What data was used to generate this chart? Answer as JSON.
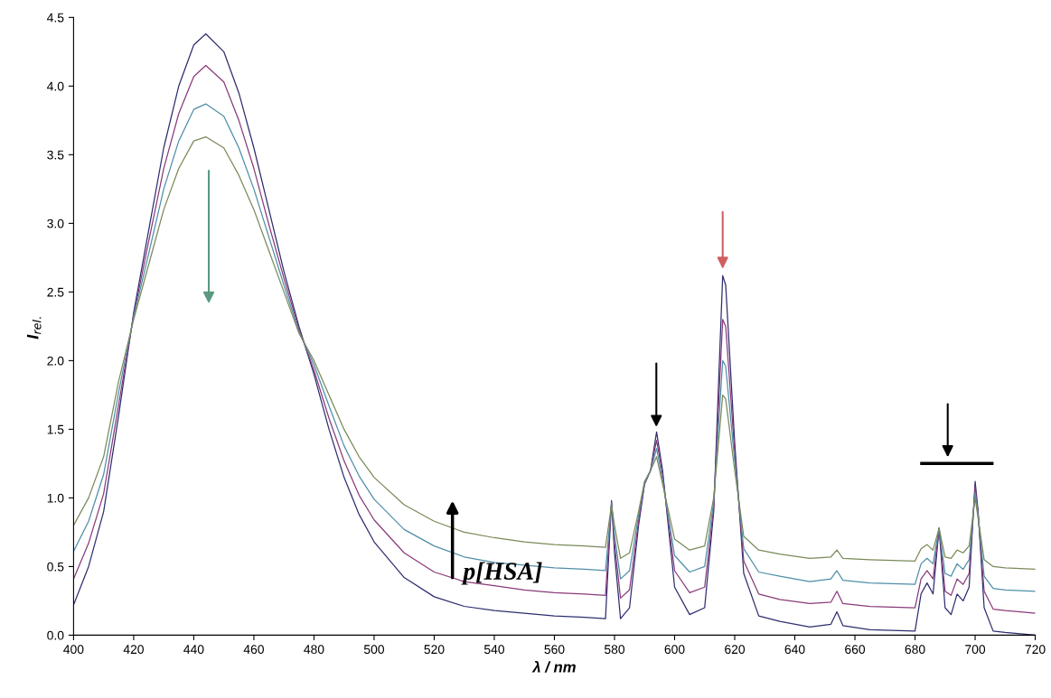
{
  "chart_data": {
    "type": "line",
    "xlabel": "λ / nm",
    "ylabel": "I$_{rel.}$",
    "annotations": [
      "p[HSA]"
    ],
    "x": [
      400,
      405,
      410,
      415,
      420,
      425,
      430,
      435,
      440,
      444,
      450,
      455,
      460,
      465,
      470,
      475,
      480,
      485,
      490,
      495,
      500,
      510,
      520,
      530,
      540,
      550,
      560,
      570,
      577,
      579,
      580,
      582,
      585,
      588,
      590,
      592,
      594,
      596,
      600,
      605,
      610,
      613,
      616,
      617,
      620,
      623,
      628,
      635,
      645,
      652,
      654,
      656,
      665,
      680,
      682,
      684,
      686,
      688,
      690,
      692,
      694,
      696,
      698,
      700,
      701,
      703,
      706,
      710,
      720
    ],
    "series": [
      {
        "color": "#2e2e70",
        "values": [
          0.22,
          0.5,
          0.9,
          1.6,
          2.35,
          2.95,
          3.55,
          4.0,
          4.3,
          4.38,
          4.25,
          3.95,
          3.55,
          3.1,
          2.65,
          2.25,
          1.9,
          1.5,
          1.15,
          0.88,
          0.68,
          0.42,
          0.28,
          0.21,
          0.18,
          0.16,
          0.14,
          0.13,
          0.12,
          0.98,
          0.6,
          0.12,
          0.2,
          0.8,
          1.1,
          1.2,
          1.48,
          1.2,
          0.35,
          0.15,
          0.2,
          0.9,
          2.62,
          2.55,
          1.4,
          0.45,
          0.14,
          0.1,
          0.06,
          0.08,
          0.17,
          0.07,
          0.04,
          0.03,
          0.3,
          0.38,
          0.3,
          0.78,
          0.2,
          0.15,
          0.3,
          0.25,
          0.35,
          1.12,
          0.9,
          0.2,
          0.03,
          0.02,
          0.0
        ]
      },
      {
        "color": "#8a3a7a",
        "values": [
          0.41,
          0.67,
          1.03,
          1.68,
          2.33,
          2.87,
          3.4,
          3.8,
          4.07,
          4.15,
          4.03,
          3.75,
          3.4,
          2.99,
          2.6,
          2.23,
          1.93,
          1.58,
          1.27,
          1.02,
          0.84,
          0.6,
          0.46,
          0.39,
          0.36,
          0.33,
          0.31,
          0.3,
          0.29,
          0.97,
          0.67,
          0.27,
          0.33,
          0.83,
          1.11,
          1.2,
          1.42,
          1.17,
          0.47,
          0.31,
          0.35,
          0.93,
          2.3,
          2.25,
          1.33,
          0.54,
          0.3,
          0.26,
          0.23,
          0.24,
          0.32,
          0.23,
          0.21,
          0.2,
          0.41,
          0.47,
          0.41,
          0.78,
          0.32,
          0.29,
          0.41,
          0.37,
          0.45,
          1.08,
          0.88,
          0.32,
          0.19,
          0.18,
          0.16
        ]
      },
      {
        "color": "#4f8fa8",
        "values": [
          0.61,
          0.83,
          1.17,
          1.77,
          2.32,
          2.78,
          3.25,
          3.6,
          3.83,
          3.87,
          3.78,
          3.55,
          3.25,
          2.9,
          2.55,
          2.21,
          1.97,
          1.67,
          1.38,
          1.16,
          0.99,
          0.77,
          0.65,
          0.57,
          0.53,
          0.51,
          0.49,
          0.48,
          0.47,
          0.96,
          0.73,
          0.41,
          0.47,
          0.87,
          1.11,
          1.2,
          1.36,
          1.13,
          0.58,
          0.46,
          0.5,
          0.97,
          2.0,
          1.96,
          1.27,
          0.63,
          0.46,
          0.43,
          0.39,
          0.41,
          0.47,
          0.4,
          0.38,
          0.37,
          0.52,
          0.56,
          0.52,
          0.78,
          0.45,
          0.43,
          0.52,
          0.48,
          0.55,
          1.04,
          0.87,
          0.43,
          0.34,
          0.33,
          0.32
        ]
      },
      {
        "color": "#7a8a5a",
        "values": [
          0.8,
          1.0,
          1.3,
          1.85,
          2.3,
          2.7,
          3.1,
          3.4,
          3.6,
          3.63,
          3.55,
          3.35,
          3.1,
          2.8,
          2.5,
          2.2,
          2.0,
          1.75,
          1.5,
          1.3,
          1.15,
          0.95,
          0.83,
          0.75,
          0.71,
          0.68,
          0.66,
          0.65,
          0.64,
          0.95,
          0.8,
          0.56,
          0.6,
          0.9,
          1.12,
          1.2,
          1.3,
          1.1,
          0.7,
          0.62,
          0.65,
          1.0,
          1.75,
          1.72,
          1.2,
          0.72,
          0.62,
          0.59,
          0.56,
          0.57,
          0.62,
          0.56,
          0.55,
          0.54,
          0.63,
          0.66,
          0.62,
          0.78,
          0.57,
          0.56,
          0.62,
          0.6,
          0.65,
          1.0,
          0.85,
          0.55,
          0.5,
          0.49,
          0.48
        ]
      }
    ],
    "xlim": [
      400,
      720
    ],
    "xticks": [
      400,
      420,
      440,
      460,
      480,
      500,
      520,
      540,
      560,
      580,
      600,
      620,
      640,
      660,
      680,
      700,
      720
    ],
    "ylim": [
      0,
      4.5
    ],
    "yticks": [
      {
        "value": 0,
        "label": "0.0"
      },
      {
        "value": 0.5,
        "label": "0.5"
      },
      {
        "value": 1,
        "label": "1.0"
      },
      {
        "value": 1.5,
        "label": "1.5"
      },
      {
        "value": 2,
        "label": "2.0"
      },
      {
        "value": 2.5,
        "label": "2.5"
      },
      {
        "value": 3,
        "label": "3.0"
      },
      {
        "value": 3.5,
        "label": "3.5"
      },
      {
        "value": 4,
        "label": "4.0"
      },
      {
        "value": 4.5,
        "label": "4.5"
      }
    ]
  }
}
